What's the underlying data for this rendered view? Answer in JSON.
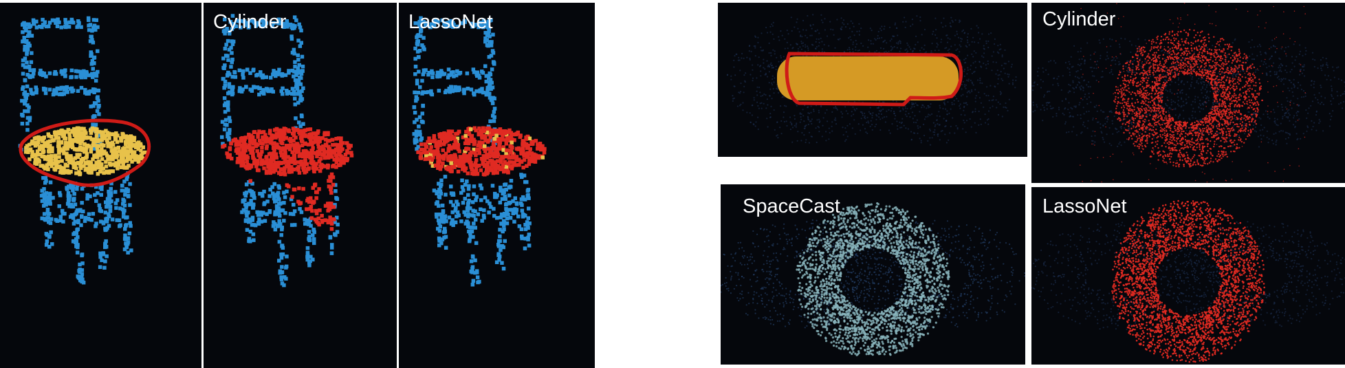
{
  "figure": {
    "chair_panels": [
      {
        "id": "chair-input",
        "label": ""
      },
      {
        "id": "chair-cylinder",
        "label": "Cylinder"
      },
      {
        "id": "chair-lassonet",
        "label": "LassoNet"
      }
    ],
    "torus_panels": [
      {
        "id": "torus-input",
        "label": ""
      },
      {
        "id": "torus-cylinder",
        "label": "Cylinder"
      },
      {
        "id": "torus-spacecast",
        "label": "SpaceCast"
      },
      {
        "id": "torus-lassonet",
        "label": "LassoNet"
      }
    ]
  },
  "colors": {
    "background": "#05070c",
    "context_points": "#2a8fd6",
    "lasso_selection": "#e8c24a",
    "selected_points": "#e02a22",
    "lasso_stroke": "#cf1b17",
    "torus_context": "#1a2a45",
    "torus_selection": "#d59a25",
    "spacecast_selection": "#8ab5bd"
  }
}
